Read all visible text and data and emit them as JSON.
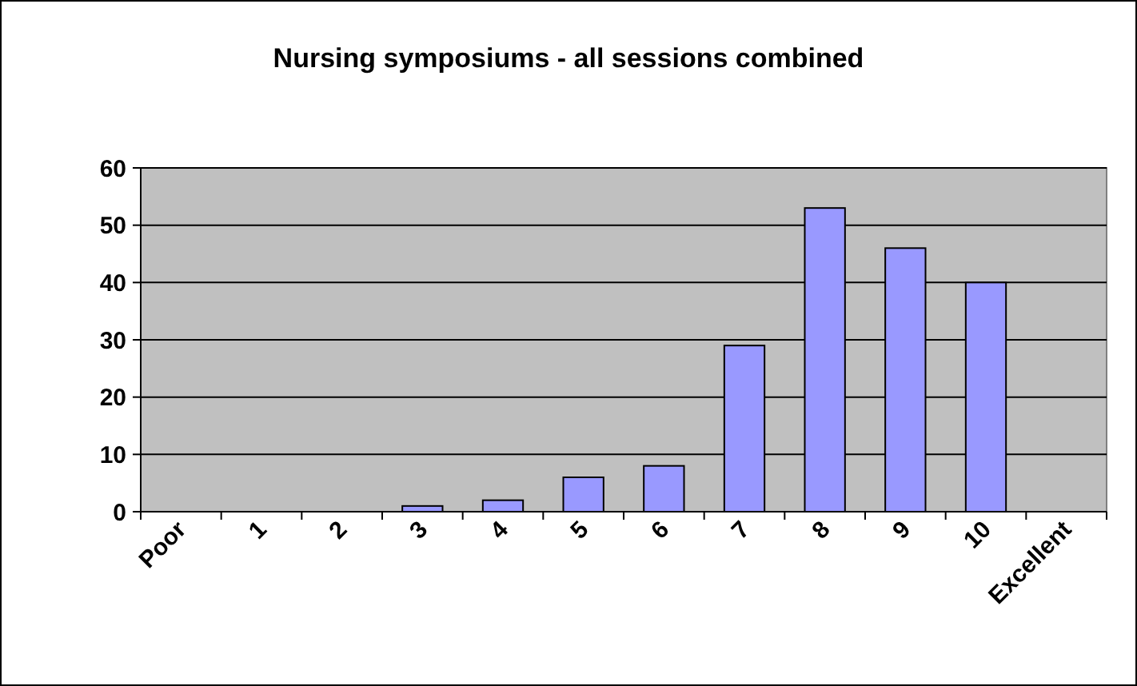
{
  "chart_data": {
    "type": "bar",
    "title": "Nursing symposiums - all sessions combined",
    "categories": [
      "Poor",
      "1",
      "2",
      "3",
      "4",
      "5",
      "6",
      "7",
      "8",
      "9",
      "10",
      "Excellent"
    ],
    "values": [
      0,
      0,
      0,
      1,
      2,
      6,
      8,
      29,
      53,
      46,
      40,
      0
    ],
    "color": "#9999ff",
    "ylim": [
      0,
      60
    ],
    "yticks": [
      0,
      10,
      20,
      30,
      40,
      50,
      60
    ],
    "grid": "y"
  }
}
